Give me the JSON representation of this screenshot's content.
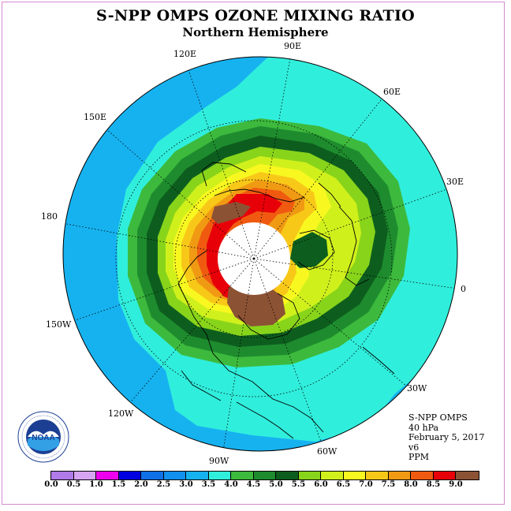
{
  "header": {
    "title": "S-NPP OMPS OZONE MIXING RATIO",
    "subtitle": "Northern Hemisphere"
  },
  "map": {
    "projection": "north polar stereographic",
    "lon_labels": [
      "90E",
      "60E",
      "30E",
      "0",
      "30W",
      "60W",
      "90W",
      "120W",
      "150W",
      "180",
      "150E",
      "120E"
    ],
    "colors": {
      "ocean_outside": "#ffffff",
      "missing_polar_night": "#ffffff",
      "outline": "#000000"
    }
  },
  "info": {
    "instrument": "S-NPP OMPS",
    "level": "40 hPa",
    "date": "February 5, 2017",
    "version": "v6",
    "units": "PPM"
  },
  "colorbar": {
    "labels": [
      "0.0",
      "0.5",
      "1.0",
      "1.5",
      "2.0",
      "2.5",
      "3.0",
      "3.5",
      "4.0",
      "4.5",
      "5.0",
      "5.5",
      "6.0",
      "6.5",
      "7.0",
      "7.5",
      "8.0",
      "8.5",
      "9.0"
    ],
    "colors": [
      "#b07ae8",
      "#d6a4f2",
      "#ee00ee",
      "#0000e0",
      "#1070e8",
      "#1290ee",
      "#16b2f0",
      "#30eedc",
      "#3dba3d",
      "#1e8c2e",
      "#0d5e1e",
      "#88d41a",
      "#d0f01c",
      "#f8f820",
      "#f8c818",
      "#f09a14",
      "#f05a10",
      "#e80008",
      "#8c5234"
    ]
  },
  "logo": {
    "text": "NOAA",
    "ring_text": "NATIONAL OCEANIC AND ATMOSPHERIC ADMINISTRATION · U.S. DEPARTMENT OF COMMERCE"
  }
}
